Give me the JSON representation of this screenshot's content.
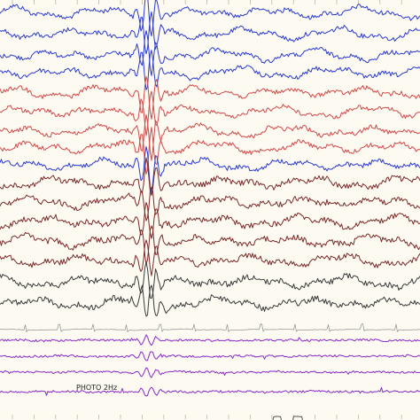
{
  "view": {
    "background": "#fcfaf1",
    "time_marks": 19,
    "photic_label": "PHOTO 2Hz"
  },
  "channel_groups": [
    {
      "name": "blue-group-1",
      "color": "#2c3bcf",
      "count": 4
    },
    {
      "name": "red-group",
      "color": "#cf4a4a",
      "count": 4
    },
    {
      "name": "blue-group-2",
      "color": "#2c3bcf",
      "count": 1
    },
    {
      "name": "brown-group",
      "color": "#7a2a2a",
      "count": 5
    },
    {
      "name": "dark-group",
      "color": "#3a3a3a",
      "count": 2
    },
    {
      "name": "ecg-channel",
      "color": "#9a9a9a",
      "count": 1
    },
    {
      "name": "emg-group",
      "color": "#8a2bc9",
      "count": 4
    },
    {
      "name": "photic-channel",
      "color": "#555555",
      "count": 1
    }
  ]
}
